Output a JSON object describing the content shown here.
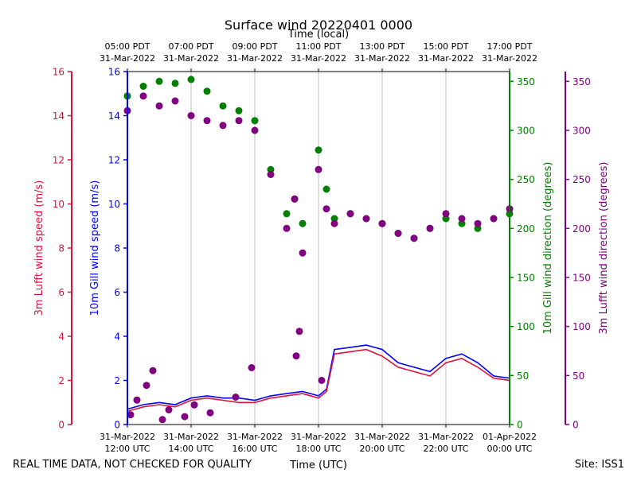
{
  "chart_data": {
    "type": "line",
    "title": "Surface wind 20220401 0000",
    "top_xlabel": "Time (local)",
    "xlabel": "Time (UTC)",
    "footer_left": "REAL TIME DATA, NOT CHECKED FOR QUALITY",
    "footer_right": "Site: ISS1",
    "x_hours_range": [
      12,
      24
    ],
    "bottom_ticks": [
      {
        "h": 12,
        "line1": "31-Mar-2022",
        "line2": "12:00 UTC"
      },
      {
        "h": 14,
        "line1": "31-Mar-2022",
        "line2": "14:00 UTC"
      },
      {
        "h": 16,
        "line1": "31-Mar-2022",
        "line2": "16:00 UTC"
      },
      {
        "h": 18,
        "line1": "31-Mar-2022",
        "line2": "18:00 UTC"
      },
      {
        "h": 20,
        "line1": "31-Mar-2022",
        "line2": "20:00 UTC"
      },
      {
        "h": 22,
        "line1": "31-Mar-2022",
        "line2": "22:00 UTC"
      },
      {
        "h": 24,
        "line1": "01-Apr-2022",
        "line2": "00:00 UTC"
      }
    ],
    "top_ticks": [
      {
        "h": 12,
        "line1": "05:00 PDT",
        "line2": "31-Mar-2022"
      },
      {
        "h": 14,
        "line1": "07:00 PDT",
        "line2": "31-Mar-2022"
      },
      {
        "h": 16,
        "line1": "09:00 PDT",
        "line2": "31-Mar-2022"
      },
      {
        "h": 18,
        "line1": "11:00 PDT",
        "line2": "31-Mar-2022"
      },
      {
        "h": 20,
        "line1": "13:00 PDT",
        "line2": "31-Mar-2022"
      },
      {
        "h": 22,
        "line1": "15:00 PDT",
        "line2": "31-Mar-2022"
      },
      {
        "h": 24,
        "line1": "17:00 PDT",
        "line2": "31-Mar-2022"
      }
    ],
    "axes": {
      "lufft_speed": {
        "label": "3m Lufft wind speed (m/s)",
        "ylim": [
          0,
          16
        ],
        "ticks": [
          0,
          2,
          4,
          6,
          8,
          10,
          12,
          14,
          16
        ],
        "color": "#dc143c"
      },
      "gill_speed": {
        "label": "10m Gill wind speed (m/s)",
        "ylim": [
          0,
          16
        ],
        "ticks": [
          0,
          2,
          4,
          6,
          8,
          10,
          12,
          14,
          16
        ],
        "color": "#0000ff"
      },
      "gill_dir": {
        "label": "10m Gill wind direction (degrees)",
        "ylim": [
          0,
          360
        ],
        "ticks": [
          0,
          50,
          100,
          150,
          200,
          250,
          300,
          350
        ],
        "color": "#008000"
      },
      "lufft_dir": {
        "label": "3m Lufft wind direction (degrees)",
        "ylim": [
          0,
          360
        ],
        "ticks": [
          0,
          50,
          100,
          150,
          200,
          250,
          300,
          350
        ],
        "color": "#800080"
      }
    },
    "series": [
      {
        "name": "10m Gill wind speed",
        "type": "line",
        "axis": "gill_speed",
        "color": "#0000ff",
        "x": [
          12.0,
          12.5,
          13.0,
          13.5,
          14.0,
          14.5,
          15.0,
          15.5,
          16.0,
          16.5,
          17.0,
          17.5,
          18.0,
          18.25,
          18.5,
          19.0,
          19.5,
          20.0,
          20.5,
          21.0,
          21.5,
          22.0,
          22.5,
          23.0,
          23.5,
          24.0
        ],
        "values": [
          0.7,
          0.9,
          1.0,
          0.9,
          1.2,
          1.3,
          1.2,
          1.2,
          1.1,
          1.3,
          1.4,
          1.5,
          1.3,
          1.6,
          3.4,
          3.5,
          3.6,
          3.4,
          2.8,
          2.6,
          2.4,
          3.0,
          3.2,
          2.8,
          2.2,
          2.1
        ]
      },
      {
        "name": "3m Lufft wind speed",
        "type": "line",
        "axis": "lufft_speed",
        "color": "#dc143c",
        "x": [
          12.0,
          12.5,
          13.0,
          13.5,
          14.0,
          14.5,
          15.0,
          15.5,
          16.0,
          16.5,
          17.0,
          17.5,
          18.0,
          18.25,
          18.5,
          19.0,
          19.5,
          20.0,
          20.5,
          21.0,
          21.5,
          22.0,
          22.5,
          23.0,
          23.5,
          24.0
        ],
        "values": [
          0.6,
          0.8,
          0.9,
          0.8,
          1.1,
          1.2,
          1.1,
          1.0,
          1.0,
          1.2,
          1.3,
          1.4,
          1.2,
          1.5,
          3.2,
          3.3,
          3.4,
          3.1,
          2.6,
          2.4,
          2.2,
          2.8,
          3.0,
          2.6,
          2.1,
          2.0
        ]
      },
      {
        "name": "10m Gill wind direction",
        "type": "scatter",
        "axis": "gill_dir",
        "color": "#008000",
        "x": [
          12.0,
          12.5,
          13.0,
          13.5,
          14.0,
          14.5,
          15.0,
          15.5,
          16.0,
          16.5,
          17.0,
          17.25,
          17.5,
          18.0,
          18.25,
          18.5,
          19.0,
          19.5,
          20.0,
          20.5,
          21.0,
          21.5,
          22.0,
          22.5,
          23.0,
          23.5,
          24.0
        ],
        "values": [
          335,
          345,
          350,
          348,
          352,
          340,
          325,
          320,
          310,
          260,
          215,
          230,
          205,
          280,
          240,
          210,
          215,
          210,
          205,
          195,
          190,
          200,
          210,
          205,
          200,
          210,
          215
        ]
      },
      {
        "name": "3m Lufft wind direction",
        "type": "scatter",
        "axis": "lufft_dir",
        "color": "#800080",
        "x": [
          12.0,
          12.5,
          13.0,
          13.5,
          14.0,
          14.5,
          15.0,
          15.5,
          16.0,
          16.5,
          17.0,
          17.25,
          17.5,
          18.0,
          18.25,
          18.5,
          19.0,
          19.5,
          20.0,
          20.5,
          21.0,
          21.5,
          22.0,
          22.5,
          23.0,
          23.5,
          24.0
        ],
        "values": [
          320,
          335,
          325,
          330,
          315,
          310,
          305,
          310,
          300,
          255,
          200,
          230,
          175,
          260,
          220,
          205,
          215,
          210,
          205,
          195,
          190,
          200,
          215,
          210,
          205,
          210,
          220
        ]
      },
      {
        "name": "3m Lufft wind direction (near-calm low values)",
        "type": "scatter",
        "axis": "lufft_dir",
        "color": "#800080",
        "x": [
          12.1,
          12.3,
          12.6,
          12.8,
          13.1,
          13.3,
          13.8,
          14.1,
          14.6,
          15.4,
          15.9,
          17.3,
          17.4,
          18.1
        ],
        "values": [
          10,
          25,
          40,
          55,
          5,
          15,
          8,
          20,
          12,
          28,
          58,
          70,
          95,
          45
        ]
      }
    ]
  }
}
